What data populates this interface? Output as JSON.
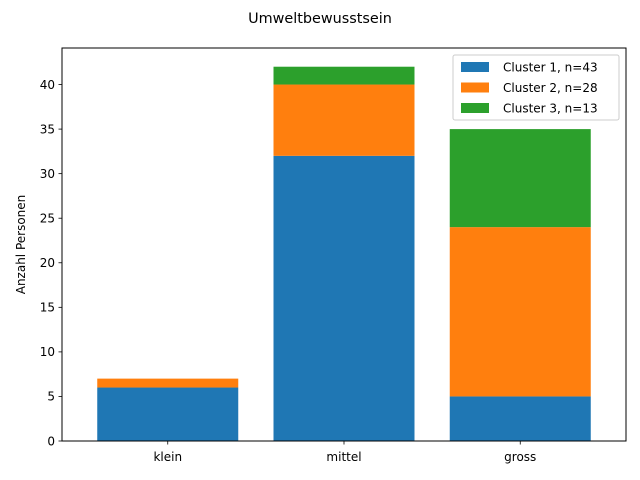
{
  "chart_data": {
    "type": "bar",
    "stacked": true,
    "title": "Umweltbewusstsein",
    "xlabel": "",
    "ylabel": "Anzahl Personen",
    "categories": [
      "klein",
      "mittel",
      "gross"
    ],
    "series": [
      {
        "name": "Cluster 1, n=43",
        "values": [
          6,
          32,
          5
        ],
        "color": "#1f77b4"
      },
      {
        "name": "Cluster 2, n=28",
        "values": [
          1,
          8,
          19
        ],
        "color": "#ff7f0e"
      },
      {
        "name": "Cluster 3, n=13",
        "values": [
          0,
          2,
          11
        ],
        "color": "#2ca02c"
      }
    ],
    "ylim": [
      0,
      44.1
    ],
    "yticks": [
      0,
      5,
      10,
      15,
      20,
      25,
      30,
      35,
      40
    ],
    "grid": false,
    "legend_position": "top-right"
  }
}
